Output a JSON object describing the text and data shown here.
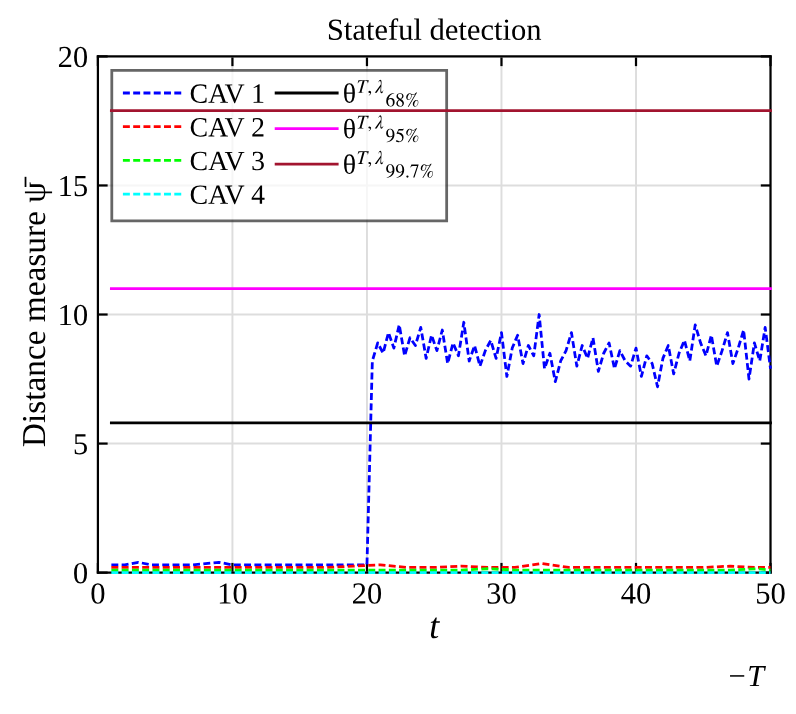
{
  "chart_data": {
    "type": "line",
    "title": "Stateful detection",
    "xlabel": "t",
    "ylabel": "Distance measure ψ̄",
    "xlim": [
      0,
      50
    ],
    "ylim": [
      0,
      20
    ],
    "xticks": [
      0,
      10,
      20,
      30,
      40,
      50
    ],
    "yticks": [
      0,
      5,
      10,
      15,
      20
    ],
    "grid": true,
    "legend": "top left",
    "annotations": [
      "−T"
    ],
    "series": [
      {
        "name": "CAV 1",
        "color": "#0000ff",
        "line_style": "dashed",
        "x": [
          1,
          2,
          3,
          4,
          5,
          6,
          7,
          8,
          9,
          10,
          11,
          12,
          13,
          14,
          15,
          16,
          17,
          18,
          19,
          20,
          20.4,
          20.8,
          21.2,
          21.6,
          22,
          22.4,
          22.8,
          23.2,
          23.6,
          24,
          24.4,
          24.8,
          25.2,
          25.6,
          26,
          26.4,
          26.8,
          27.2,
          27.6,
          28,
          28.4,
          28.8,
          29.2,
          29.6,
          30,
          30.4,
          30.8,
          31.2,
          31.6,
          32,
          32.4,
          32.8,
          33.2,
          33.6,
          34,
          34.4,
          34.8,
          35.2,
          35.6,
          36,
          36.4,
          36.8,
          37.2,
          37.6,
          38,
          38.4,
          38.8,
          39.2,
          39.6,
          40,
          40.4,
          40.8,
          41.2,
          41.6,
          42,
          42.4,
          42.8,
          43.2,
          43.6,
          44,
          44.4,
          44.8,
          45.2,
          45.6,
          46,
          46.4,
          46.8,
          47.2,
          47.6,
          48,
          48.4,
          48.8,
          49.2,
          49.6,
          50
        ],
        "values": [
          0.3,
          0.3,
          0.4,
          0.3,
          0.3,
          0.3,
          0.3,
          0.35,
          0.4,
          0.3,
          0.3,
          0.3,
          0.3,
          0.3,
          0.3,
          0.3,
          0.3,
          0.3,
          0.3,
          0.3,
          8.2,
          8.9,
          8.5,
          9.3,
          8.7,
          9.6,
          8.4,
          9.1,
          8.8,
          9.5,
          8.3,
          9.2,
          8.6,
          9.4,
          8.1,
          8.9,
          8.4,
          9.7,
          8.2,
          8.8,
          8.0,
          8.6,
          9.0,
          8.3,
          9.3,
          7.6,
          8.7,
          9.2,
          8.1,
          8.8,
          8.4,
          10.0,
          7.9,
          8.5,
          7.4,
          8.2,
          8.6,
          9.3,
          8.0,
          8.8,
          8.3,
          9.1,
          7.8,
          8.5,
          8.9,
          7.9,
          8.6,
          8.2,
          8.0,
          8.7,
          7.6,
          8.4,
          8.1,
          7.2,
          8.3,
          8.8,
          7.7,
          8.5,
          9.0,
          8.2,
          9.6,
          8.9,
          8.4,
          9.2,
          8.0,
          8.6,
          9.3,
          8.1,
          8.7,
          9.4,
          7.5,
          8.9,
          8.2,
          9.5,
          7.9
        ]
      },
      {
        "name": "CAV 2",
        "color": "#ff0000",
        "line_style": "dashed",
        "x": [
          1,
          3,
          5,
          7,
          9,
          11,
          13,
          15,
          17,
          19,
          21,
          23,
          25,
          27,
          29,
          31,
          33,
          35,
          37,
          39,
          41,
          43,
          45,
          47,
          49,
          50
        ],
        "values": [
          0.2,
          0.2,
          0.2,
          0.2,
          0.2,
          0.2,
          0.2,
          0.2,
          0.2,
          0.25,
          0.3,
          0.2,
          0.2,
          0.25,
          0.2,
          0.2,
          0.35,
          0.2,
          0.2,
          0.2,
          0.2,
          0.2,
          0.2,
          0.25,
          0.2,
          0.2
        ]
      },
      {
        "name": "CAV 3",
        "color": "#00ff00",
        "line_style": "dashed",
        "x": [
          1,
          3,
          5,
          7,
          9,
          11,
          13,
          15,
          17,
          19,
          21,
          23,
          25,
          27,
          29,
          31,
          33,
          35,
          37,
          39,
          41,
          43,
          45,
          47,
          49,
          50
        ],
        "values": [
          0.1,
          0.1,
          0.1,
          0.1,
          0.1,
          0.1,
          0.1,
          0.1,
          0.1,
          0.1,
          0.1,
          0.1,
          0.1,
          0.1,
          0.15,
          0.1,
          0.1,
          0.1,
          0.1,
          0.1,
          0.1,
          0.1,
          0.1,
          0.1,
          0.15,
          0.1
        ]
      },
      {
        "name": "CAV 4",
        "color": "#00ffff",
        "line_style": "dashed",
        "x": [
          1,
          3,
          5,
          7,
          9,
          11,
          13,
          15,
          17,
          19,
          21,
          23,
          25,
          27,
          29,
          31,
          33,
          35,
          37,
          39,
          41,
          43,
          45,
          47,
          49,
          50
        ],
        "values": [
          0,
          0,
          0,
          0,
          0,
          0,
          0,
          0,
          0,
          0,
          0,
          0,
          0,
          0,
          0,
          0,
          0,
          0,
          0,
          0,
          0,
          0,
          0,
          0,
          0,
          0
        ]
      },
      {
        "name": "θ$^{T,λ}$$_{68%}$",
        "color": "#000000",
        "line_style": "solid",
        "x": [
          1,
          50
        ],
        "values": [
          5.8,
          5.8
        ]
      },
      {
        "name": "θ$^{T,λ}$$_{95%}$",
        "color": "#ff00ff",
        "line_style": "solid",
        "x": [
          1,
          50
        ],
        "values": [
          11.0,
          11.0
        ]
      },
      {
        "name": "θ$^{T,λ}$$_{99.7%}$",
        "color": "#a2142f",
        "line_style": "solid",
        "x": [
          1,
          50
        ],
        "values": [
          17.9,
          17.9
        ]
      }
    ]
  }
}
